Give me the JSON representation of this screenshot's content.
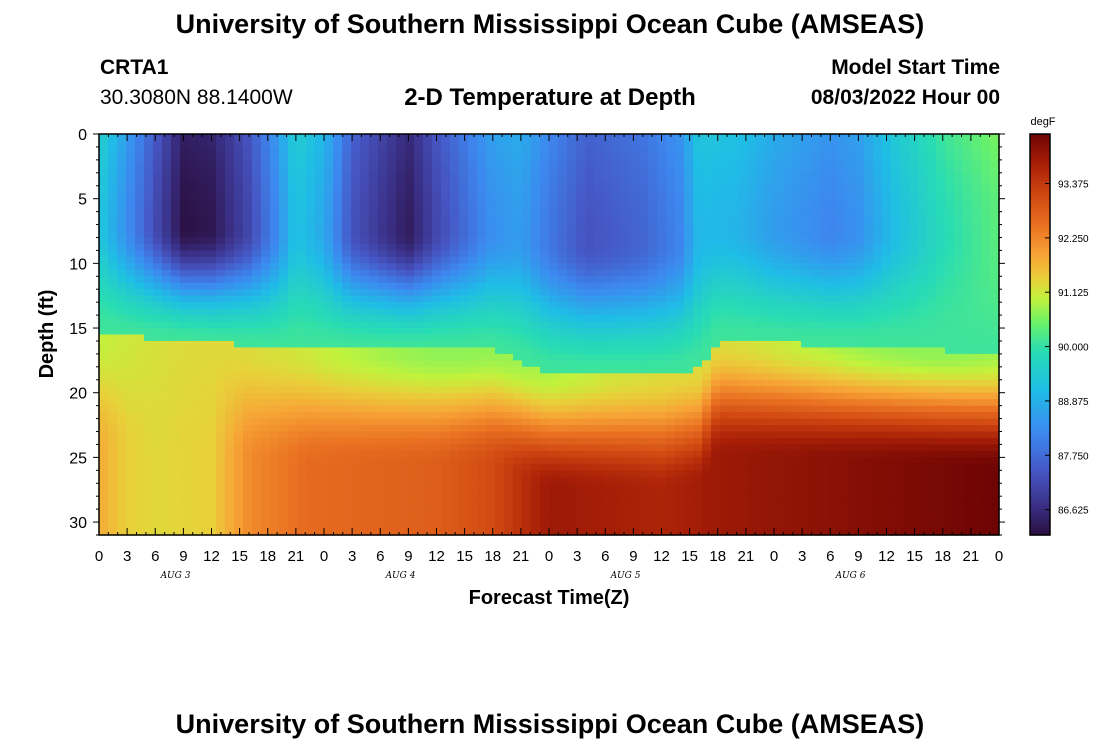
{
  "page": {
    "title": "University of Southern Mississippi Ocean Cube (AMSEAS)",
    "repeated_title": "University of Southern Mississippi Ocean Cube (AMSEAS)"
  },
  "header": {
    "station": "CRTA1",
    "coords": "30.3080N  88.1400W",
    "plot_title": "2-D Temperature at Depth",
    "model_start_label": "Model Start Time",
    "model_start_value": "08/03/2022 Hour 00"
  },
  "chart_data": {
    "type": "heatmap",
    "title": "2-D Temperature at Depth",
    "xlabel": "Forecast Time(Z)",
    "ylabel": "Depth (ft)",
    "x_ticks": [
      "0",
      "3",
      "6",
      "9",
      "12",
      "15",
      "18",
      "21",
      "0",
      "3",
      "6",
      "9",
      "12",
      "15",
      "18",
      "21",
      "0",
      "3",
      "6",
      "9",
      "12",
      "15",
      "18",
      "21",
      "0",
      "3",
      "6",
      "9",
      "12",
      "15",
      "18",
      "21",
      "0"
    ],
    "x_hours_range": [
      0,
      96
    ],
    "day_labels": [
      "AUG 3",
      "AUG 4",
      "AUG 5",
      "AUG 6"
    ],
    "y_ticks": [
      0,
      5,
      10,
      15,
      20,
      25,
      30
    ],
    "ylim": [
      0,
      31
    ],
    "y_inverted": true,
    "colorbar": {
      "unit": "degF",
      "ticks": [
        "93.375",
        "92.250",
        "91.125",
        "90.000",
        "88.875",
        "87.750",
        "86.625"
      ],
      "range": [
        86.1,
        94.4
      ]
    },
    "color_scale": [
      [
        86.1,
        "#2a0f40"
      ],
      [
        86.7,
        "#3a2f85"
      ],
      [
        87.4,
        "#4655c2"
      ],
      [
        88.2,
        "#3d88f0"
      ],
      [
        89.1,
        "#1fbde6"
      ],
      [
        89.9,
        "#28dcb4"
      ],
      [
        90.5,
        "#6cf268"
      ],
      [
        91.0,
        "#c2f23c"
      ],
      [
        91.4,
        "#e9cf3a"
      ],
      [
        91.9,
        "#f7a436"
      ],
      [
        92.5,
        "#ea7222"
      ],
      [
        93.2,
        "#cd4410"
      ],
      [
        93.8,
        "#a61e07"
      ],
      [
        94.4,
        "#6e0404"
      ]
    ],
    "grid": false,
    "legend": "colorbar-right"
  }
}
